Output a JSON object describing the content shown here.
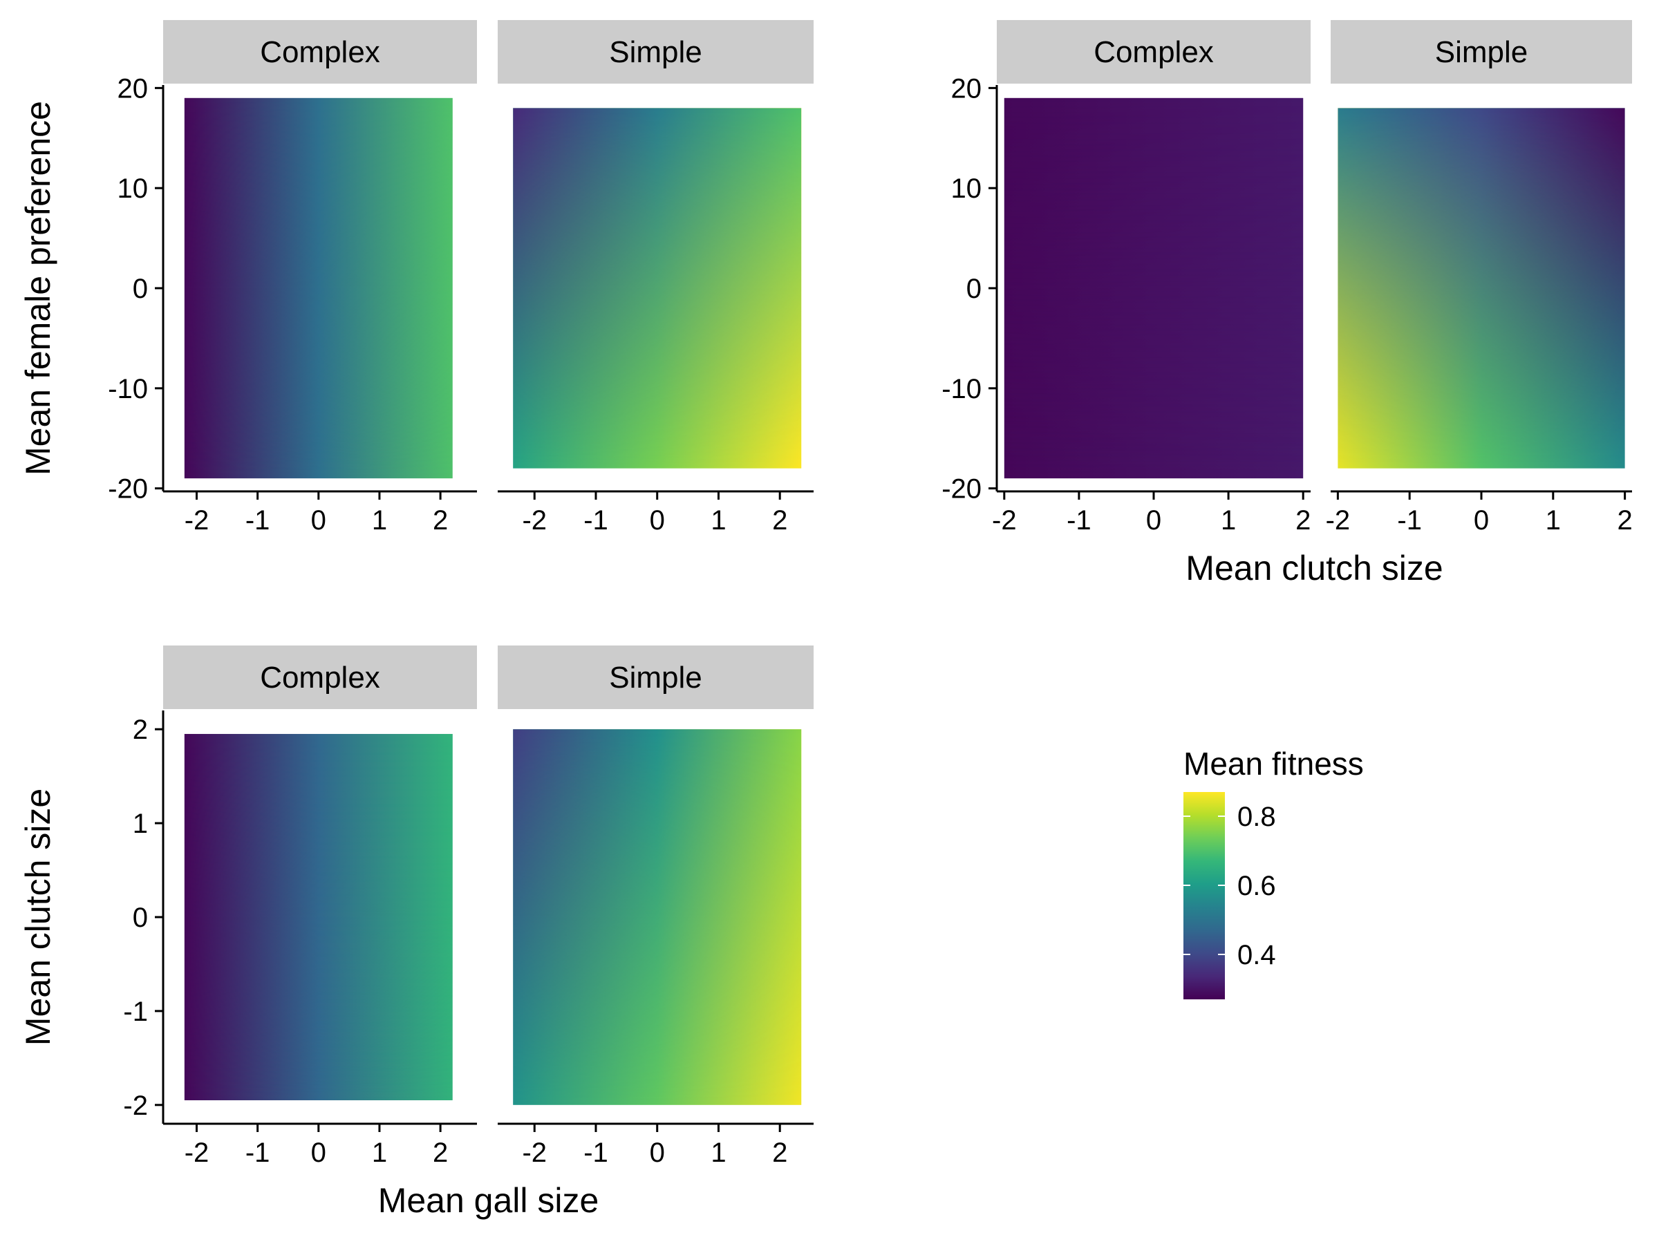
{
  "chart_data": [
    {
      "type": "heatmap",
      "xlabel": "",
      "ylabel": "Mean female preference",
      "panels": [
        {
          "strip": "Complex",
          "x_ticks": [
            "-2",
            "-1",
            "0",
            "1",
            "2"
          ],
          "y_ticks": [
            "20",
            "10",
            "0",
            "-10",
            "-20"
          ],
          "xlim": [
            -2.55,
            2.6
          ],
          "ylim": [
            -20.3,
            20.3
          ],
          "x_range": [
            -2.2,
            2.2
          ],
          "y_range": [
            -19,
            19
          ],
          "fitness_grid": [
            [
              0.28,
              0.7
            ],
            [
              0.28,
              0.7
            ]
          ]
        },
        {
          "strip": "Simple",
          "x_ticks": [
            "-2",
            "-1",
            "0",
            "1",
            "2"
          ],
          "xlim": [
            -2.6,
            2.55
          ],
          "x_range": [
            -2.35,
            2.35
          ],
          "y_range": [
            -18,
            18
          ],
          "fitness_grid": [
            [
              0.62,
              0.87
            ],
            [
              0.34,
              0.7
            ]
          ]
        }
      ]
    },
    {
      "type": "heatmap",
      "xlabel": "Mean clutch size",
      "ylabel": "",
      "panels": [
        {
          "strip": "Complex",
          "x_ticks": [
            "-2",
            "-1",
            "0",
            "1",
            "2"
          ],
          "y_ticks": [
            "20",
            "10",
            "0",
            "-10",
            "-20"
          ],
          "xlim": [
            -2.1,
            2.1
          ],
          "ylim": [
            -20.3,
            20.3
          ],
          "x_range": [
            -2.0,
            2.0
          ],
          "y_range": [
            -19,
            19
          ],
          "fitness_grid": [
            [
              0.28,
              0.31
            ],
            [
              0.28,
              0.31
            ]
          ]
        },
        {
          "strip": "Simple",
          "x_ticks": [
            "-2",
            "-1",
            "0",
            "1",
            "2"
          ],
          "xlim": [
            -2.1,
            2.1
          ],
          "x_range": [
            -2.0,
            2.0
          ],
          "y_range": [
            -18,
            18
          ],
          "fitness_grid": [
            [
              0.85,
              0.56
            ],
            [
              0.52,
              0.28
            ]
          ]
        }
      ]
    },
    {
      "type": "heatmap",
      "xlabel": "Mean gall size",
      "ylabel": "Mean clutch size",
      "panels": [
        {
          "strip": "Complex",
          "x_ticks": [
            "-2",
            "-1",
            "0",
            "1",
            "2"
          ],
          "y_ticks": [
            "2",
            "1",
            "0",
            "-1",
            "-2"
          ],
          "xlim": [
            -2.55,
            2.6
          ],
          "ylim": [
            -2.2,
            2.2
          ],
          "x_range": [
            -2.2,
            2.2
          ],
          "y_range": [
            -1.95,
            1.95
          ],
          "fitness_grid": [
            [
              0.28,
              0.66
            ],
            [
              0.28,
              0.66
            ]
          ]
        },
        {
          "strip": "Simple",
          "x_ticks": [
            "-2",
            "-1",
            "0",
            "1",
            "2"
          ],
          "xlim": [
            -2.6,
            2.55
          ],
          "x_range": [
            -2.35,
            2.35
          ],
          "y_range": [
            -2.0,
            2.0
          ],
          "fitness_grid": [
            [
              0.58,
              0.86
            ],
            [
              0.38,
              0.76
            ]
          ]
        }
      ]
    }
  ],
  "legend": {
    "title": "Mean fitness",
    "ticks": [
      {
        "value": 0.4,
        "label": "0.4"
      },
      {
        "value": 0.6,
        "label": "0.6"
      },
      {
        "value": 0.8,
        "label": "0.8"
      }
    ],
    "range": [
      0.27,
      0.87
    ],
    "colormap": [
      "#440154",
      "#482878",
      "#3e4a89",
      "#31688e",
      "#26828e",
      "#1f9e89",
      "#35b779",
      "#6ece58",
      "#b5de2b",
      "#fde725"
    ]
  }
}
